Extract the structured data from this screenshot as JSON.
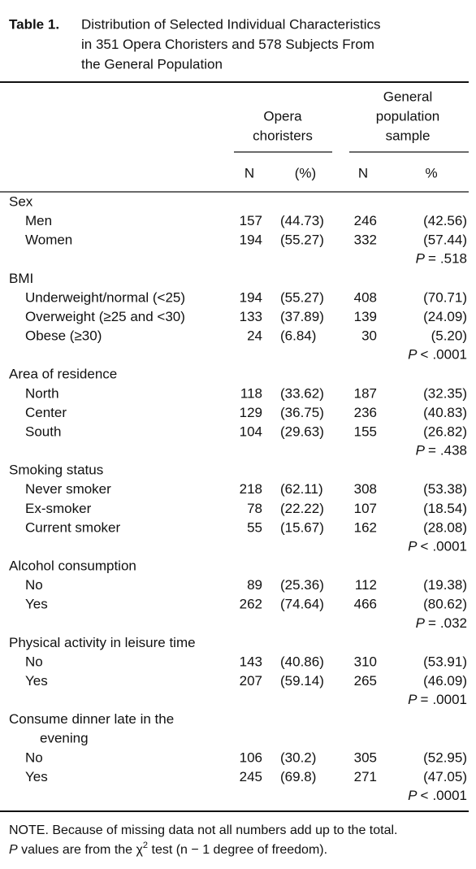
{
  "title": {
    "label": "Table 1.",
    "lines": [
      "Distribution of Selected Individual Characteristics",
      "in 351 Opera Choristers and 578 Subjects From",
      "the General Population"
    ]
  },
  "table": {
    "group_headers": [
      [
        "Opera",
        "choristers"
      ],
      [
        "General",
        "population",
        "sample"
      ]
    ],
    "columns": [
      "N",
      "(%)",
      "N",
      "%"
    ],
    "p_symbol": "P",
    "groups": [
      {
        "label": [
          "Sex"
        ],
        "rows": [
          {
            "label": "Men",
            "cells": [
              157,
              "(44.73)",
              246,
              "(42.56)"
            ]
          },
          {
            "label": "Women",
            "cells": [
              194,
              "(55.27)",
              332,
              "(57.44)"
            ]
          }
        ],
        "p": {
          "relation": "=",
          "value": ".518"
        }
      },
      {
        "label": [
          "BMI"
        ],
        "rows": [
          {
            "label": "Underweight/normal (<25)",
            "cells": [
              194,
              "(55.27)",
              408,
              "(70.71)"
            ]
          },
          {
            "label": "Overweight (≥25 and <30)",
            "cells": [
              133,
              "(37.89)",
              139,
              "(24.09)"
            ]
          },
          {
            "label": "Obese (≥30)",
            "cells": [
              24,
              "(6.84)",
              30,
              "(5.20)"
            ]
          }
        ],
        "p": {
          "relation": "<",
          "value": ".0001"
        }
      },
      {
        "label": [
          "Area of residence"
        ],
        "rows": [
          {
            "label": "North",
            "cells": [
              118,
              "(33.62)",
              187,
              "(32.35)"
            ]
          },
          {
            "label": "Center",
            "cells": [
              129,
              "(36.75)",
              236,
              "(40.83)"
            ]
          },
          {
            "label": "South",
            "cells": [
              104,
              "(29.63)",
              155,
              "(26.82)"
            ]
          }
        ],
        "p": {
          "relation": "=",
          "value": ".438"
        }
      },
      {
        "label": [
          "Smoking status"
        ],
        "rows": [
          {
            "label": "Never smoker",
            "cells": [
              218,
              "(62.11)",
              308,
              "(53.38)"
            ]
          },
          {
            "label": "Ex-smoker",
            "cells": [
              78,
              "(22.22)",
              107,
              "(18.54)"
            ]
          },
          {
            "label": "Current smoker",
            "cells": [
              55,
              "(15.67)",
              162,
              "(28.08)"
            ]
          }
        ],
        "p": {
          "relation": "<",
          "value": ".0001"
        }
      },
      {
        "label": [
          "Alcohol consumption"
        ],
        "rows": [
          {
            "label": "No",
            "cells": [
              89,
              "(25.36)",
              112,
              "(19.38)"
            ]
          },
          {
            "label": "Yes",
            "cells": [
              262,
              "(74.64)",
              466,
              "(80.62)"
            ]
          }
        ],
        "p": {
          "relation": "=",
          "value": ".032"
        }
      },
      {
        "label": [
          "Physical activity in leisure time"
        ],
        "rows": [
          {
            "label": "No",
            "cells": [
              143,
              "(40.86)",
              310,
              "(53.91)"
            ]
          },
          {
            "label": "Yes",
            "cells": [
              207,
              "(59.14)",
              265,
              "(46.09)"
            ]
          }
        ],
        "p": {
          "relation": "=",
          "value": ".0001"
        }
      },
      {
        "label": [
          "Consume dinner late in the",
          "evening"
        ],
        "rows": [
          {
            "label": "No",
            "cells": [
              106,
              "(30.2)",
              305,
              "(52.95)"
            ]
          },
          {
            "label": "Yes",
            "cells": [
              245,
              "(69.8)",
              271,
              "(47.05)"
            ]
          }
        ],
        "p": {
          "relation": "<",
          "value": ".0001"
        }
      }
    ]
  },
  "note": {
    "line1": "NOTE. Because of missing data not all numbers add up to the total.",
    "line2_a": " values are from the χ",
    "line2_sup": "2",
    "line2_b": " test (n − 1 degree of freedom)."
  }
}
